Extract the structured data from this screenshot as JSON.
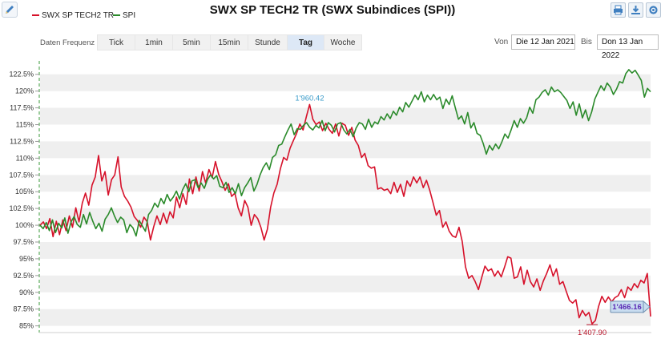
{
  "toolbar": {
    "edit_icon": "pencil-icon",
    "right_icons": [
      "print-icon",
      "download-icon",
      "settings-icon"
    ]
  },
  "frequency": {
    "label": "Daten Frequenz",
    "options": [
      "Tick",
      "1min",
      "5min",
      "15min",
      "Stunde",
      "Tag",
      "Woche"
    ],
    "selected": "Tag"
  },
  "date_range": {
    "from_label": "Von",
    "from_value": "Die 12 Jan 2021",
    "to_label": "Bis",
    "to_value": "Don 13 Jan 2022"
  },
  "chart_data": {
    "type": "line",
    "title": "SWX SP TECH2 TR (SWX Subindices (SPI))",
    "x_range": [
      "2021-01-12",
      "2022-01-13"
    ],
    "ylim": [
      84,
      124.5
    ],
    "yticks": [
      85,
      87.5,
      90,
      92.5,
      95,
      97.5,
      100,
      102.5,
      105,
      107.5,
      110,
      112.5,
      115,
      117.5,
      120,
      122.5
    ],
    "ytick_labels": [
      "85%",
      "87.5%",
      "90%",
      "92.5%",
      "95%",
      "97.5%",
      "100%",
      "102.5%",
      "105%",
      "107.5%",
      "110%",
      "112.5%",
      "115%",
      "117.5%",
      "120%",
      "122.5%"
    ],
    "grid": "alternating horizontal bands",
    "legend_position": "top-left",
    "series": [
      {
        "name": "SWX SP TECH2 TR",
        "color": "#d6112a",
        "values": [
          100,
          100.5,
          99.5,
          101,
          98.3,
          100.6,
          98.6,
          100.8,
          99.2,
          101.4,
          99.7,
          102.6,
          100.5,
          103.3,
          104.8,
          103,
          106,
          107.2,
          110.4,
          106.6,
          108,
          104.5,
          106.8,
          107.5,
          110.2,
          105.7,
          104.3,
          103.6,
          102.7,
          101.3,
          100.7,
          99.7,
          101.2,
          100.5,
          97.8,
          99.8,
          101.4,
          100.1,
          101.8,
          100.3,
          102,
          101.1,
          104.2,
          102.6,
          104.7,
          103.1,
          106.9,
          104.7,
          107.2,
          105.1,
          108,
          106.3,
          108.3,
          107.1,
          109.5,
          107.6,
          106.5,
          105.2,
          106.2,
          104.3,
          104.8,
          102.6,
          101.4,
          103.7,
          102.7,
          100,
          101.6,
          101,
          99.7,
          97.8,
          99.4,
          102.7,
          104.8,
          106.1,
          108.4,
          110.1,
          109.7,
          111.5,
          112.6,
          113.7,
          115.1,
          114.2,
          116.2,
          118,
          115.8,
          115,
          115.4,
          114.1,
          115.2,
          114.3,
          113.7,
          115.1,
          113.3,
          115.2,
          114.9,
          113.4,
          114.6,
          112.7,
          111.9,
          110.1,
          110.7,
          108.9,
          108.5,
          108.7,
          105.4,
          105.6,
          105.2,
          105.4,
          104.7,
          106.4,
          104.9,
          106.1,
          104.3,
          106.6,
          105.8,
          107.2,
          106.3,
          107.2,
          105.6,
          106.7,
          105.2,
          103.4,
          101.5,
          102.2,
          99.7,
          100.5,
          99.1,
          98.4,
          98.2,
          99.7,
          97.6,
          93.8,
          92.1,
          92.5,
          91.6,
          90.4,
          92.2,
          93.9,
          93.2,
          93.5,
          92.4,
          93.2,
          92.3,
          93.7,
          95.3,
          95.1,
          92.1,
          92.3,
          93.8,
          91.2,
          93.3,
          91.6,
          90.8,
          92,
          90.3,
          91.7,
          92.8,
          94.1,
          92.4,
          93.5,
          91.2,
          91.6,
          90.2,
          88.8,
          88.4,
          88.9,
          86.2,
          87.3,
          86.5,
          87,
          85.3,
          85.8,
          87.9,
          89.4,
          88.5,
          89.3,
          88.6,
          89.2,
          89.5,
          90.4,
          89.2,
          90.8,
          90.3,
          91.3,
          90.7,
          91.8,
          91.4,
          92.8,
          86.4
        ]
      },
      {
        "name": "SPI",
        "color": "#2a8a2a",
        "values": [
          100,
          99.5,
          100.4,
          99.2,
          100.8,
          98.9,
          100.3,
          99.6,
          101.1,
          98.8,
          100.5,
          101.3,
          100.1,
          99.7,
          101.6,
          100.2,
          101.9,
          100.6,
          99.5,
          100.3,
          99.1,
          100.9,
          101.6,
          102.6,
          101.4,
          100.4,
          101.2,
          100.8,
          98.9,
          100.1,
          99.6,
          98.4,
          100.7,
          99.9,
          99.1,
          101.6,
          102.2,
          103.3,
          102.7,
          104,
          103.2,
          104.6,
          103.6,
          104.2,
          105.1,
          103.9,
          105.3,
          106.2,
          105,
          106.6,
          106.8,
          105.6,
          106.3,
          105.5,
          106.8,
          107.5,
          106.9,
          107.4,
          105.8,
          105.6,
          106.4,
          104.9,
          105.6,
          104.7,
          106.2,
          104.4,
          105.6,
          106.3,
          107.1,
          105.1,
          106.1,
          107.5,
          108.6,
          109.3,
          108.3,
          110.1,
          110.5,
          111.9,
          112.1,
          113.2,
          114.2,
          115.1,
          113.5,
          114.4,
          114.3,
          114.9,
          115.3,
          114.6,
          114.2,
          114.9,
          114.5,
          115.6,
          114.1,
          115.3,
          114.9,
          113.9,
          115.1,
          115.3,
          114.2,
          113.6,
          114.3,
          113.2,
          114.5,
          115.3,
          115.1,
          114.3,
          115.8,
          114.6,
          115.4,
          115.1,
          116.2,
          115.7,
          116.6,
          115.9,
          117,
          116.4,
          117.6,
          116.9,
          118.3,
          117.6,
          118.5,
          119.4,
          118.7,
          119.9,
          118.4,
          119.4,
          118.7,
          119.5,
          118.7,
          119.1,
          117.4,
          118.8,
          118,
          119.3,
          117.5,
          115.8,
          116.3,
          115.1,
          116.8,
          114.5,
          115.3,
          113.7,
          113.4,
          112.2,
          110.6,
          111.9,
          111.2,
          112.1,
          111.4,
          112.4,
          113.6,
          113,
          114.2,
          115.6,
          114.6,
          115.9,
          115.2,
          116,
          117.6,
          116.7,
          118.7,
          119.1,
          119.8,
          120.2,
          119.4,
          120.6,
          119.9,
          120.2,
          119.8,
          119.2,
          118.6,
          117.4,
          118.4,
          116.4,
          118.1,
          116,
          117.2,
          115.6,
          116.9,
          118.8,
          119.8,
          120.8,
          120.1,
          121.2,
          120.6,
          119.5,
          120.3,
          121.4,
          121.2,
          122.6,
          123.2,
          122.7,
          123.1,
          122.4,
          121.6,
          119.1,
          120.4,
          119.9
        ]
      }
    ],
    "annotations": [
      {
        "text": "1'960.42",
        "series": "SWX SP TECH2 TR",
        "point": "max",
        "color": "#3a9bc9"
      },
      {
        "text": "1'407.90",
        "series": "SWX SP TECH2 TR",
        "point": "min",
        "color": "#b8142a"
      },
      {
        "text": "1'466.16",
        "series": "SWX SP TECH2 TR",
        "point": "last",
        "color": "#5b2bb5"
      }
    ]
  }
}
